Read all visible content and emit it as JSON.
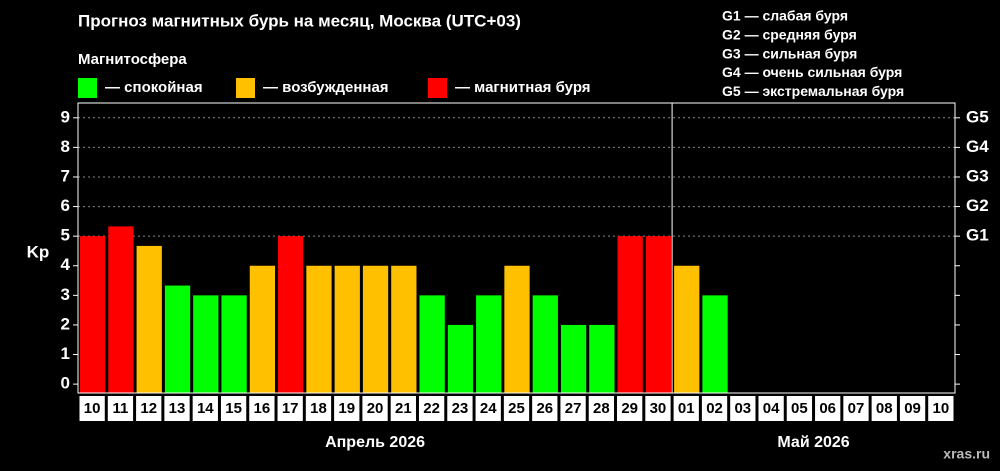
{
  "chart_data": {
    "type": "bar",
    "title": "Прогноз магнитных бурь на месяц, Москва (UTC+03)",
    "legend_title": "Магнитосфера",
    "legend": [
      {
        "name": "— спокойная",
        "color": "#00ff00"
      },
      {
        "name": "— возбужденная",
        "color": "#ffc000"
      },
      {
        "name": "— магнитная буря",
        "color": "#ff0000"
      }
    ],
    "scale_notes": [
      "G1 — слабая буря",
      "G2 — средняя буря",
      "G3 — сильная буря",
      "G4 — очень сильная буря",
      "G5 — экстремальная буря"
    ],
    "ylabel": "Kp",
    "months": [
      {
        "label": "Апрель 2026",
        "categories": [
          "10",
          "11",
          "12",
          "13",
          "14",
          "15",
          "16",
          "17",
          "18",
          "19",
          "20",
          "21",
          "22",
          "23",
          "24",
          "25",
          "26",
          "27",
          "28",
          "29",
          "30"
        ],
        "values": [
          5,
          5.33,
          4.67,
          3.33,
          3,
          3,
          4,
          5,
          4,
          4,
          4,
          4,
          3,
          2,
          3,
          4,
          3,
          2,
          2,
          5,
          5
        ],
        "colors": [
          "#ff0000",
          "#ff0000",
          "#ffc000",
          "#00ff00",
          "#00ff00",
          "#00ff00",
          "#ffc000",
          "#ff0000",
          "#ffc000",
          "#ffc000",
          "#ffc000",
          "#ffc000",
          "#00ff00",
          "#00ff00",
          "#00ff00",
          "#ffc000",
          "#00ff00",
          "#00ff00",
          "#00ff00",
          "#ff0000",
          "#ff0000"
        ]
      },
      {
        "label": "Май 2026",
        "categories": [
          "01",
          "02",
          "03",
          "04",
          "05",
          "06",
          "07",
          "08",
          "09",
          "10"
        ],
        "values": [
          4,
          3,
          null,
          null,
          null,
          null,
          null,
          null,
          null,
          null
        ],
        "colors": [
          "#ffc000",
          "#00ff00",
          null,
          null,
          null,
          null,
          null,
          null,
          null,
          null
        ]
      }
    ],
    "ylim": [
      -0.3,
      9.5
    ],
    "yticks": [
      0,
      1,
      2,
      3,
      4,
      5,
      6,
      7,
      8,
      9
    ],
    "y2ticks": [
      {
        "value": 5,
        "label": "G1"
      },
      {
        "value": 6,
        "label": "G2"
      },
      {
        "value": 7,
        "label": "G3"
      },
      {
        "value": 8,
        "label": "G4"
      },
      {
        "value": 9,
        "label": "G5"
      }
    ],
    "grid": true,
    "source": "xras.ru"
  }
}
